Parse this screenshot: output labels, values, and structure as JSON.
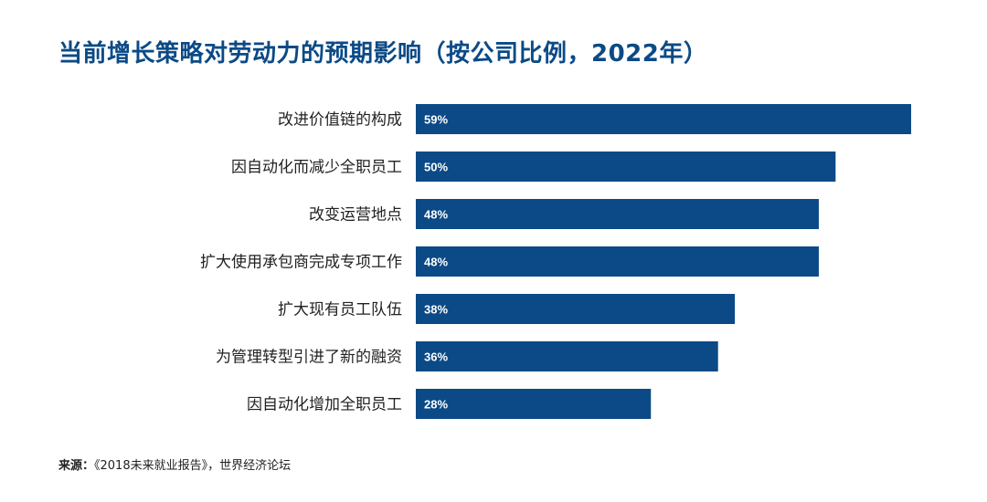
{
  "title": "当前增长策略对劳动力的预期影响（按公司比例，2022年）",
  "colors": {
    "bar": "#0b4a86",
    "title": "#0b4a86",
    "text": "#222222"
  },
  "chart_data": {
    "type": "bar",
    "orientation": "horizontal",
    "categories": [
      "改进价值链的构成",
      "因自动化而减少全职员工",
      "改变运营地点",
      "扩大使用承包商完成专项工作",
      "扩大现有员工队伍",
      "为管理转型引进了新的融资",
      "因自动化增加全职员工"
    ],
    "values": [
      59,
      50,
      48,
      48,
      38,
      36,
      28
    ],
    "data_labels": [
      "59%",
      "50%",
      "48%",
      "48%",
      "38%",
      "36%",
      "28%"
    ],
    "xlim": [
      0,
      59
    ],
    "grid": false,
    "legend": "none"
  },
  "source": {
    "label": "来源：",
    "text": "《2018未来就业报告》，世界经济论坛"
  }
}
